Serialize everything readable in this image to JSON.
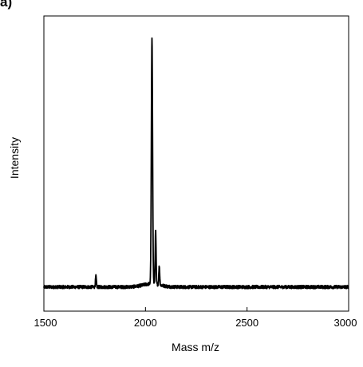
{
  "panel_label": "a)",
  "chart_data": {
    "type": "line",
    "title": "",
    "xlabel": "Mass m/z",
    "ylabel": "Intensity",
    "xlim": [
      1500,
      3000
    ],
    "ylim": [
      0,
      1.1
    ],
    "xticks": [
      1500,
      2000,
      2500,
      3000
    ],
    "y_tick_labels_shown": false,
    "grid": false,
    "legend": "none",
    "line_color": "#000000",
    "baseline": 0.09,
    "noise_amplitude": 0.006,
    "peaks": [
      {
        "x": 1756,
        "height": 0.13
      },
      {
        "x": 2032,
        "height": 1.0
      },
      {
        "x": 2050,
        "height": 0.29
      },
      {
        "x": 2068,
        "height": 0.16
      }
    ]
  }
}
